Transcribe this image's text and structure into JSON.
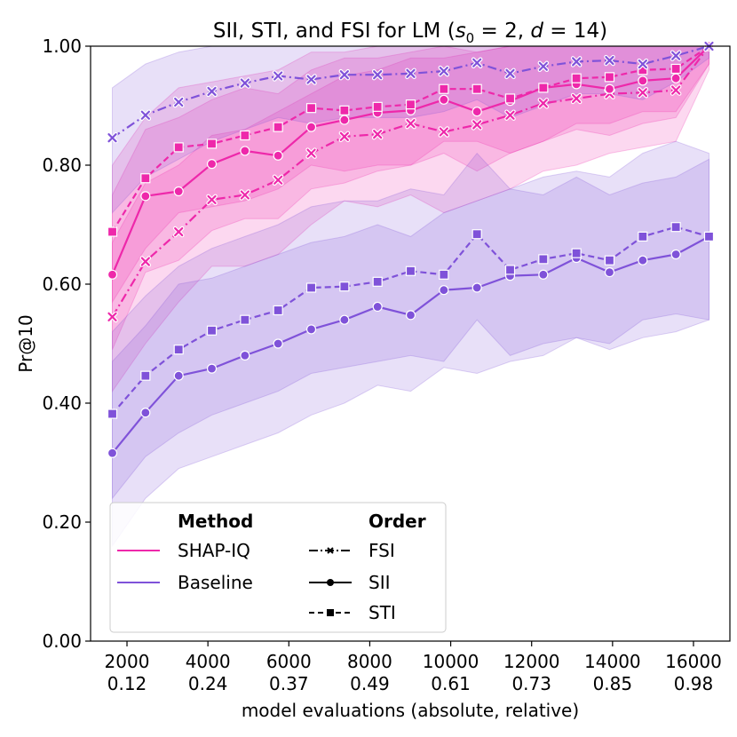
{
  "chart_data": {
    "type": "line",
    "title_parts": {
      "prefix": "SII, STI, and FSI for LM (",
      "s": "s",
      "sub0": "0",
      "eq1": " = 2, ",
      "d": "d",
      "eq2": " = 14)"
    },
    "xlabel": "model evaluations (absolute, relative)",
    "ylabel": "Pr@10",
    "xlim": [
      1100,
      16900
    ],
    "ylim": [
      0,
      1
    ],
    "x_ticks": [
      {
        "value": 2000,
        "abs": "2000",
        "rel": "0.12"
      },
      {
        "value": 4000,
        "abs": "4000",
        "rel": "0.24"
      },
      {
        "value": 6000,
        "abs": "6000",
        "rel": "0.37"
      },
      {
        "value": 8000,
        "abs": "8000",
        "rel": "0.49"
      },
      {
        "value": 10000,
        "abs": "10000",
        "rel": "0.61"
      },
      {
        "value": 12000,
        "abs": "12000",
        "rel": "0.73"
      },
      {
        "value": 14000,
        "abs": "14000",
        "rel": "0.85"
      },
      {
        "value": 16000,
        "abs": "16000",
        "rel": "0.98"
      }
    ],
    "y_ticks": [
      {
        "value": 0.0,
        "label": "0.00"
      },
      {
        "value": 0.2,
        "label": "0.20"
      },
      {
        "value": 0.4,
        "label": "0.40"
      },
      {
        "value": 0.6,
        "label": "0.60"
      },
      {
        "value": 0.8,
        "label": "0.80"
      },
      {
        "value": 1.0,
        "label": "1.00"
      }
    ],
    "x": [
      1638,
      2457,
      3277,
      4096,
      4915,
      5734,
      6554,
      7373,
      8192,
      9011,
      9830,
      10650,
      11469,
      12288,
      13107,
      13926,
      14746,
      15565,
      16384
    ],
    "colors": {
      "shap_iq": "#ee28aa",
      "baseline": "#7f52d9"
    },
    "series": [
      {
        "name": "SHAP-IQ FSI",
        "method": "SHAP-IQ",
        "order": "FSI",
        "marker": "x",
        "dash": "dashdot",
        "values": [
          0.545,
          0.638,
          0.688,
          0.742,
          0.75,
          0.775,
          0.82,
          0.848,
          0.852,
          0.87,
          0.856,
          0.868,
          0.884,
          0.904,
          0.912,
          0.92,
          0.922,
          0.926,
          1.0
        ],
        "lower": [
          0.42,
          0.5,
          0.57,
          0.63,
          0.63,
          0.65,
          0.7,
          0.74,
          0.73,
          0.75,
          0.72,
          0.74,
          0.76,
          0.79,
          0.8,
          0.82,
          0.83,
          0.84,
          0.96
        ],
        "upper": [
          0.67,
          0.77,
          0.8,
          0.85,
          0.86,
          0.89,
          0.92,
          0.95,
          0.96,
          0.98,
          0.98,
          0.99,
          1.0,
          1.0,
          1.0,
          1.0,
          1.0,
          1.0,
          1.0
        ]
      },
      {
        "name": "SHAP-IQ SII",
        "method": "SHAP-IQ",
        "order": "SII",
        "marker": "o",
        "dash": "solid",
        "values": [
          0.616,
          0.748,
          0.756,
          0.802,
          0.824,
          0.816,
          0.864,
          0.876,
          0.888,
          0.892,
          0.91,
          0.89,
          0.908,
          0.93,
          0.936,
          0.928,
          0.942,
          0.946,
          1.0
        ],
        "lower": [
          0.49,
          0.62,
          0.64,
          0.69,
          0.71,
          0.71,
          0.76,
          0.77,
          0.79,
          0.8,
          0.82,
          0.79,
          0.82,
          0.84,
          0.86,
          0.85,
          0.87,
          0.88,
          0.97
        ],
        "upper": [
          0.75,
          0.86,
          0.88,
          0.91,
          0.93,
          0.92,
          0.96,
          0.98,
          0.98,
          0.99,
          1.0,
          0.99,
          1.0,
          1.0,
          1.0,
          1.0,
          1.0,
          1.0,
          1.0
        ]
      },
      {
        "name": "SHAP-IQ STI",
        "method": "SHAP-IQ",
        "order": "STI",
        "marker": "s",
        "dash": "dashed",
        "values": [
          0.688,
          0.778,
          0.83,
          0.836,
          0.85,
          0.864,
          0.896,
          0.892,
          0.898,
          0.902,
          0.928,
          0.928,
          0.912,
          0.93,
          0.946,
          0.948,
          0.96,
          0.962,
          1.0
        ],
        "lower": [
          0.57,
          0.66,
          0.72,
          0.73,
          0.74,
          0.76,
          0.8,
          0.79,
          0.8,
          0.8,
          0.84,
          0.84,
          0.82,
          0.84,
          0.87,
          0.87,
          0.89,
          0.89,
          0.97
        ],
        "upper": [
          0.8,
          0.88,
          0.93,
          0.94,
          0.95,
          0.96,
          0.99,
          0.99,
          1.0,
          1.0,
          1.0,
          1.0,
          1.0,
          1.0,
          1.0,
          1.0,
          1.0,
          1.0,
          1.0
        ]
      },
      {
        "name": "Baseline FSI",
        "method": "Baseline",
        "order": "FSI",
        "marker": "x",
        "dash": "dashdot",
        "values": [
          0.846,
          0.884,
          0.906,
          0.924,
          0.938,
          0.95,
          0.944,
          0.952,
          0.952,
          0.954,
          0.958,
          0.972,
          0.954,
          0.966,
          0.974,
          0.976,
          0.97,
          0.984,
          1.0
        ],
        "lower": [
          0.72,
          0.78,
          0.81,
          0.84,
          0.86,
          0.88,
          0.87,
          0.88,
          0.88,
          0.88,
          0.89,
          0.91,
          0.88,
          0.9,
          0.92,
          0.92,
          0.91,
          0.94,
          0.98
        ],
        "upper": [
          0.93,
          0.97,
          0.99,
          1.0,
          1.0,
          1.0,
          1.0,
          1.0,
          1.0,
          1.0,
          1.0,
          1.0,
          1.0,
          1.0,
          1.0,
          1.0,
          1.0,
          1.0,
          1.0
        ]
      },
      {
        "name": "Baseline SII",
        "method": "Baseline",
        "order": "SII",
        "marker": "o",
        "dash": "solid",
        "values": [
          0.316,
          0.384,
          0.446,
          0.458,
          0.48,
          0.5,
          0.524,
          0.54,
          0.562,
          0.548,
          0.59,
          0.594,
          0.614,
          0.616,
          0.644,
          0.62,
          0.64,
          0.65,
          0.68
        ],
        "lower": [
          0.16,
          0.24,
          0.29,
          0.31,
          0.33,
          0.35,
          0.38,
          0.4,
          0.43,
          0.42,
          0.46,
          0.45,
          0.47,
          0.48,
          0.51,
          0.49,
          0.51,
          0.52,
          0.54
        ],
        "upper": [
          0.47,
          0.53,
          0.6,
          0.61,
          0.63,
          0.65,
          0.67,
          0.68,
          0.7,
          0.68,
          0.72,
          0.74,
          0.76,
          0.75,
          0.78,
          0.75,
          0.77,
          0.78,
          0.81
        ]
      },
      {
        "name": "Baseline STI",
        "method": "Baseline",
        "order": "STI",
        "marker": "s",
        "dash": "dashed",
        "values": [
          0.382,
          0.446,
          0.49,
          0.522,
          0.54,
          0.556,
          0.594,
          0.596,
          0.604,
          0.622,
          0.616,
          0.684,
          0.624,
          0.642,
          0.652,
          0.64,
          0.68,
          0.696,
          0.68
        ],
        "lower": [
          0.24,
          0.31,
          0.35,
          0.38,
          0.4,
          0.42,
          0.45,
          0.46,
          0.47,
          0.48,
          0.47,
          0.54,
          0.48,
          0.5,
          0.51,
          0.5,
          0.54,
          0.55,
          0.54
        ],
        "upper": [
          0.52,
          0.58,
          0.63,
          0.66,
          0.68,
          0.7,
          0.73,
          0.74,
          0.74,
          0.76,
          0.75,
          0.82,
          0.76,
          0.78,
          0.79,
          0.78,
          0.82,
          0.84,
          0.82
        ]
      }
    ],
    "legend": {
      "placement": "lower-left",
      "method_heading": "Method",
      "order_heading": "Order",
      "methods": [
        {
          "label": "SHAP-IQ",
          "color": "#ee28aa"
        },
        {
          "label": "Baseline",
          "color": "#7f52d9"
        }
      ],
      "orders": [
        {
          "label": "FSI",
          "marker": "x",
          "dash": "dashdot"
        },
        {
          "label": "SII",
          "marker": "o",
          "dash": "solid"
        },
        {
          "label": "STI",
          "marker": "s",
          "dash": "dashed"
        }
      ]
    }
  }
}
